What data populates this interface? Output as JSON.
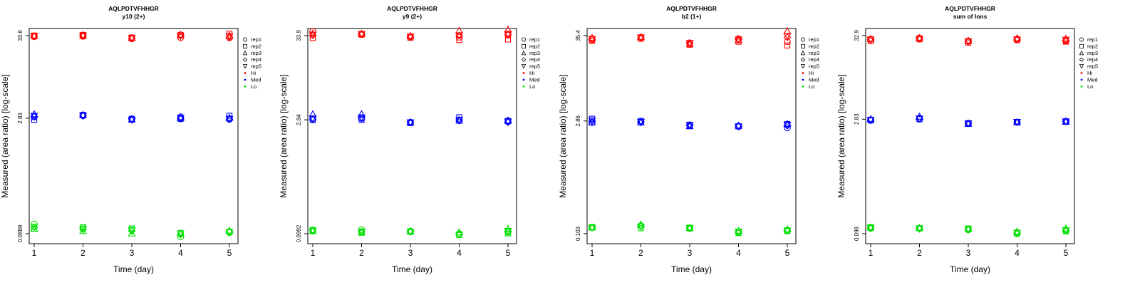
{
  "figure": {
    "tab_title": ""
  },
  "colors": {
    "Hi": "#ff0000",
    "Med": "#0000ff",
    "Lo": "#00e000",
    "axis": "#000000"
  },
  "legend": {
    "entries": [
      {
        "label": "rep1",
        "symbol": "circle"
      },
      {
        "label": "rep2",
        "symbol": "square"
      },
      {
        "label": "rep3",
        "symbol": "triangle-up"
      },
      {
        "label": "rep4",
        "symbol": "diamond"
      },
      {
        "label": "rep5",
        "symbol": "triangle-down"
      },
      {
        "label": "Hi",
        "symbol": "dot",
        "color_key": "Hi"
      },
      {
        "label": "Med",
        "symbol": "dot",
        "color_key": "Med"
      },
      {
        "label": "Lo",
        "symbol": "dot",
        "color_key": "Lo"
      }
    ]
  },
  "chart_data": [
    {
      "type": "scatter",
      "title": "AQLPDTVFHHGR",
      "subtitle": "y10 (2+)",
      "xlabel": "Time (day)",
      "ylabel": "Measured (area ratio) [log-scale]",
      "x_ticks": [
        "1",
        "2",
        "3",
        "4",
        "5"
      ],
      "y_ticks": [
        {
          "label": "0.0889",
          "value": 0.0889
        },
        {
          "label": "2.83",
          "value": 2.83
        },
        {
          "label": "33.6",
          "value": 33.6
        }
      ],
      "ylim_log": [
        0.0889,
        33.6
      ],
      "series": [
        {
          "level": "Hi",
          "rep": "rep1",
          "values": [
            32.6,
            33.0,
            30.6,
            31.7,
            31.5
          ]
        },
        {
          "level": "Hi",
          "rep": "rep2",
          "values": [
            33.6,
            34.3,
            31.7,
            34.3,
            35.6
          ]
        },
        {
          "level": "Hi",
          "rep": "rep3",
          "values": [
            33.1,
            33.6,
            31.2,
            34.6,
            33.6
          ]
        },
        {
          "level": "Hi",
          "rep": "rep4",
          "values": [
            32.9,
            34.1,
            30.9,
            34.1,
            32.0
          ]
        },
        {
          "level": "Hi",
          "rep": "rep5",
          "values": [
            33.3,
            33.8,
            31.5,
            33.3,
            33.0
          ]
        },
        {
          "level": "Med",
          "rep": "rep1",
          "values": [
            2.95,
            3.05,
            2.74,
            2.95,
            2.74
          ]
        },
        {
          "level": "Med",
          "rep": "rep2",
          "values": [
            2.7,
            3.12,
            2.78,
            2.78,
            3.05
          ]
        },
        {
          "level": "Med",
          "rep": "rep3",
          "values": [
            3.18,
            3.12,
            2.7,
            2.86,
            2.86
          ]
        },
        {
          "level": "Med",
          "rep": "rep4",
          "values": [
            2.95,
            3.05,
            2.78,
            2.78,
            2.74
          ]
        },
        {
          "level": "Med",
          "rep": "rep5",
          "values": [
            3.05,
            3.05,
            2.7,
            2.86,
            2.78
          ]
        },
        {
          "level": "Lo",
          "rep": "rep1",
          "values": [
            0.119,
            0.106,
            0.103,
            0.081,
            0.092
          ]
        },
        {
          "level": "Lo",
          "rep": "rep2",
          "values": [
            0.103,
            0.108,
            0.104,
            0.091,
            0.093
          ]
        },
        {
          "level": "Lo",
          "rep": "rep3",
          "values": [
            0.103,
            0.096,
            0.089,
            0.089,
            0.097
          ]
        },
        {
          "level": "Lo",
          "rep": "rep4",
          "values": [
            0.108,
            0.101,
            0.096,
            0.087,
            0.095
          ]
        },
        {
          "level": "Lo",
          "rep": "rep5",
          "values": [
            0.11,
            0.103,
            0.099,
            0.088,
            0.094
          ]
        }
      ]
    },
    {
      "type": "scatter",
      "title": "AQLPDTVFHHGR",
      "subtitle": "y9 (2+)",
      "xlabel": "Time (day)",
      "ylabel": "Measured (area ratio) [log-scale]",
      "x_ticks": [
        "1",
        "2",
        "3",
        "4",
        "5"
      ],
      "y_ticks": [
        {
          "label": "0.0992",
          "value": 0.0992
        },
        {
          "label": "2.84",
          "value": 2.84
        },
        {
          "label": "33.9",
          "value": 33.9
        }
      ],
      "ylim_log": [
        0.0992,
        33.9
      ],
      "series": [
        {
          "level": "Hi",
          "rep": "rep1",
          "values": [
            38.5,
            35.3,
            32.7,
            32.3,
            34.3
          ]
        },
        {
          "level": "Hi",
          "rep": "rep2",
          "values": [
            31.6,
            34.9,
            31.9,
            29.8,
            30.3
          ]
        },
        {
          "level": "Hi",
          "rep": "rep3",
          "values": [
            36.2,
            35.9,
            33.6,
            39.0,
            40.3
          ]
        },
        {
          "level": "Hi",
          "rep": "rep4",
          "values": [
            34.3,
            35.3,
            32.7,
            33.9,
            35.3
          ]
        },
        {
          "level": "Hi",
          "rep": "rep5",
          "values": [
            34.9,
            35.7,
            33.1,
            34.3,
            35.9
          ]
        },
        {
          "level": "Med",
          "rep": "rep1",
          "values": [
            2.84,
            2.96,
            2.64,
            2.77,
            2.77
          ]
        },
        {
          "level": "Med",
          "rep": "rep2",
          "values": [
            2.84,
            2.84,
            2.58,
            3.06,
            2.72
          ]
        },
        {
          "level": "Med",
          "rep": "rep3",
          "values": [
            3.34,
            3.34,
            2.64,
            2.77,
            2.77
          ]
        },
        {
          "level": "Med",
          "rep": "rep4",
          "values": [
            2.9,
            2.96,
            2.64,
            2.84,
            2.64
          ]
        },
        {
          "level": "Med",
          "rep": "rep5",
          "values": [
            2.96,
            3.06,
            2.64,
            2.84,
            2.72
          ]
        },
        {
          "level": "Lo",
          "rep": "rep1",
          "values": [
            0.109,
            0.112,
            0.107,
            0.099,
            0.104
          ]
        },
        {
          "level": "Lo",
          "rep": "rep2",
          "values": [
            0.111,
            0.102,
            0.105,
            0.095,
            0.1
          ]
        },
        {
          "level": "Lo",
          "rep": "rep3",
          "values": [
            0.107,
            0.104,
            0.107,
            0.103,
            0.114
          ]
        },
        {
          "level": "Lo",
          "rep": "rep4",
          "values": [
            0.11,
            0.105,
            0.106,
            0.098,
            0.106
          ]
        },
        {
          "level": "Lo",
          "rep": "rep5",
          "values": [
            0.108,
            0.106,
            0.105,
            0.097,
            0.108
          ]
        }
      ]
    },
    {
      "type": "scatter",
      "title": "AQLPDTVFHHGR",
      "subtitle": "b2 (1+)",
      "xlabel": "Time (day)",
      "ylabel": "Measured (area ratio) [log-scale]",
      "x_ticks": [
        "1",
        "2",
        "3",
        "4",
        "5"
      ],
      "y_ticks": [
        {
          "label": "0.103",
          "value": 0.103
        },
        {
          "label": "2.86",
          "value": 2.86
        },
        {
          "label": "35.4",
          "value": 35.4
        }
      ],
      "ylim_log": [
        0.103,
        35.4
      ],
      "series": [
        {
          "level": "Hi",
          "rep": "rep1",
          "values": [
            31.6,
            33.7,
            28.6,
            32.3,
            29.6
          ]
        },
        {
          "level": "Hi",
          "rep": "rep2",
          "values": [
            30.3,
            32.3,
            27.1,
            29.6,
            26.5
          ]
        },
        {
          "level": "Hi",
          "rep": "rep3",
          "values": [
            33.0,
            33.7,
            27.7,
            30.9,
            40.2
          ]
        },
        {
          "level": "Hi",
          "rep": "rep4",
          "values": [
            31.6,
            33.0,
            28.0,
            31.6,
            33.7
          ]
        },
        {
          "level": "Hi",
          "rep": "rep5",
          "values": [
            32.3,
            33.7,
            28.6,
            31.6,
            35.2
          ]
        },
        {
          "level": "Med",
          "rep": "rep1",
          "values": [
            2.73,
            2.73,
            2.55,
            2.44,
            2.33
          ]
        },
        {
          "level": "Med",
          "rep": "rep2",
          "values": [
            3.05,
            2.86,
            2.49,
            2.44,
            2.61
          ]
        },
        {
          "level": "Med",
          "rep": "rep3",
          "values": [
            2.73,
            2.73,
            2.44,
            2.49,
            2.61
          ]
        },
        {
          "level": "Med",
          "rep": "rep4",
          "values": [
            2.86,
            2.8,
            2.49,
            2.44,
            2.49
          ]
        },
        {
          "level": "Med",
          "rep": "rep5",
          "values": [
            2.9,
            2.8,
            2.55,
            2.44,
            2.55
          ]
        },
        {
          "level": "Lo",
          "rep": "rep1",
          "values": [
            0.124,
            0.13,
            0.12,
            0.108,
            0.112
          ]
        },
        {
          "level": "Lo",
          "rep": "rep2",
          "values": [
            0.125,
            0.121,
            0.123,
            0.105,
            0.111
          ]
        },
        {
          "level": "Lo",
          "rep": "rep3",
          "values": [
            0.123,
            0.135,
            0.121,
            0.112,
            0.117
          ]
        },
        {
          "level": "Lo",
          "rep": "rep4",
          "values": [
            0.124,
            0.128,
            0.122,
            0.109,
            0.113
          ]
        },
        {
          "level": "Lo",
          "rep": "rep5",
          "values": [
            0.123,
            0.127,
            0.121,
            0.11,
            0.114
          ]
        }
      ]
    },
    {
      "type": "scatter",
      "title": "AQLPDTVFHHGR",
      "subtitle": "sum of Ions",
      "xlabel": "Time (day)",
      "ylabel": "Measured (area ratio) [log-scale]",
      "x_ticks": [
        "1",
        "2",
        "3",
        "4",
        "5"
      ],
      "y_ticks": [
        {
          "label": "0.098",
          "value": 0.098
        },
        {
          "label": "2.83",
          "value": 2.83
        },
        {
          "label": "32.9",
          "value": 32.9
        }
      ],
      "ylim_log": [
        0.098,
        32.9
      ],
      "series": [
        {
          "level": "Hi",
          "rep": "rep1",
          "values": [
            29.5,
            30.4,
            28.0,
            29.5,
            28.3
          ]
        },
        {
          "level": "Hi",
          "rep": "rep2",
          "values": [
            28.0,
            29.5,
            26.8,
            28.9,
            27.6
          ]
        },
        {
          "level": "Hi",
          "rep": "rep3",
          "values": [
            29.8,
            30.7,
            28.3,
            30.4,
            30.1
          ]
        },
        {
          "level": "Hi",
          "rep": "rep4",
          "values": [
            29.2,
            30.1,
            27.6,
            29.2,
            28.6
          ]
        },
        {
          "level": "Hi",
          "rep": "rep5",
          "values": [
            29.5,
            30.4,
            28.0,
            29.5,
            29.2
          ]
        },
        {
          "level": "Med",
          "rep": "rep1",
          "values": [
            2.73,
            2.83,
            2.51,
            2.58,
            2.66
          ]
        },
        {
          "level": "Med",
          "rep": "rep2",
          "values": [
            2.73,
            2.83,
            2.47,
            2.58,
            2.62
          ]
        },
        {
          "level": "Med",
          "rep": "rep3",
          "values": [
            2.83,
            3.04,
            2.47,
            2.58,
            2.62
          ]
        },
        {
          "level": "Med",
          "rep": "rep4",
          "values": [
            2.78,
            2.89,
            2.51,
            2.58,
            2.66
          ]
        },
        {
          "level": "Med",
          "rep": "rep5",
          "values": [
            2.78,
            2.89,
            2.51,
            2.62,
            2.66
          ]
        },
        {
          "level": "Lo",
          "rep": "rep1",
          "values": [
            0.115,
            0.114,
            0.11,
            0.097,
            0.107
          ]
        },
        {
          "level": "Lo",
          "rep": "rep2",
          "values": [
            0.119,
            0.115,
            0.114,
            0.101,
            0.105
          ]
        },
        {
          "level": "Lo",
          "rep": "rep3",
          "values": [
            0.117,
            0.116,
            0.112,
            0.104,
            0.114
          ]
        },
        {
          "level": "Lo",
          "rep": "rep4",
          "values": [
            0.116,
            0.113,
            0.111,
            0.1,
            0.108
          ]
        },
        {
          "level": "Lo",
          "rep": "rep5",
          "values": [
            0.117,
            0.114,
            0.112,
            0.101,
            0.109
          ]
        }
      ]
    }
  ]
}
